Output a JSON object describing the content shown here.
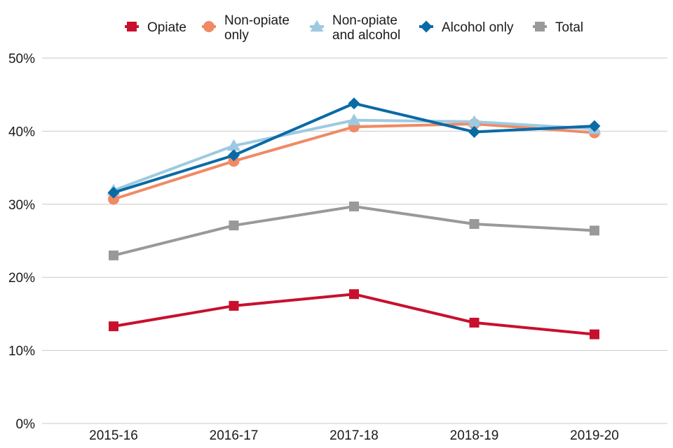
{
  "chart_data": {
    "type": "line",
    "title": "",
    "xlabel": "",
    "ylabel": "",
    "categories": [
      "2015-16",
      "2016-17",
      "2017-18",
      "2018-19",
      "2019-20"
    ],
    "ylim": [
      0,
      50
    ],
    "yticks": [
      {
        "value": 0,
        "label": "0%"
      },
      {
        "value": 10,
        "label": "10%"
      },
      {
        "value": 20,
        "label": "20%"
      },
      {
        "value": 30,
        "label": "30%"
      },
      {
        "value": 40,
        "label": "40%"
      },
      {
        "value": 50,
        "label": "50%"
      }
    ],
    "grid": true,
    "legend_position": "top",
    "series": [
      {
        "name": "Opiate",
        "legend_lines": [
          "Opiate"
        ],
        "marker": "square",
        "color": "#c8102e",
        "values": [
          13.3,
          16.1,
          17.7,
          13.8,
          12.2
        ]
      },
      {
        "name": "Non-opiate only",
        "legend_lines": [
          "Non-opiate",
          "only"
        ],
        "marker": "circle",
        "color": "#f08a64",
        "values": [
          30.7,
          35.9,
          40.6,
          41.0,
          39.8
        ]
      },
      {
        "name": "Non-opiate and alcohol",
        "legend_lines": [
          "Non-opiate",
          "and alcohol"
        ],
        "marker": "triangle",
        "color": "#9ecae1",
        "values": [
          31.9,
          38.0,
          41.5,
          41.3,
          40.3
        ]
      },
      {
        "name": "Alcohol only",
        "legend_lines": [
          "Alcohol only"
        ],
        "marker": "diamond",
        "color": "#0a6aa6",
        "values": [
          31.6,
          36.7,
          43.8,
          39.9,
          40.7
        ]
      },
      {
        "name": "Total",
        "legend_lines": [
          "Total"
        ],
        "marker": "square",
        "color": "#999999",
        "values": [
          23.0,
          27.1,
          29.7,
          27.3,
          26.4
        ]
      }
    ]
  }
}
